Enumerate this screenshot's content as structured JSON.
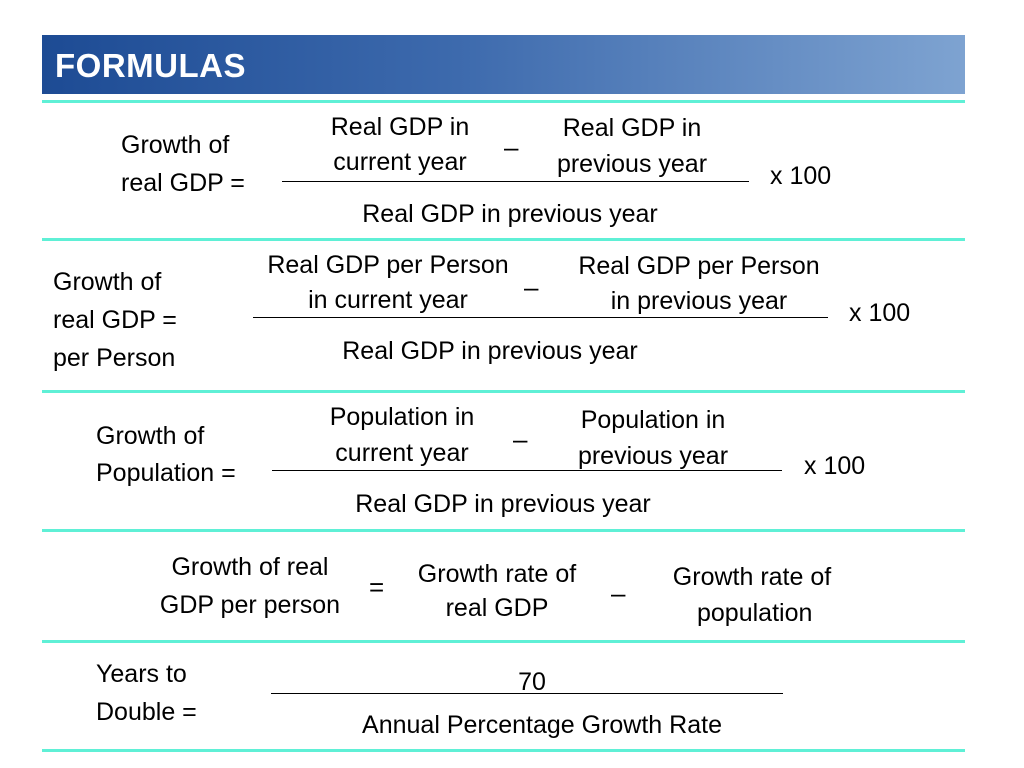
{
  "header": {
    "title": "FORMULAS"
  },
  "formula1": {
    "lhs": [
      "Growth of",
      "real GDP ="
    ],
    "num_left": [
      "Real GDP in",
      "current year"
    ],
    "num_minus": "–",
    "num_right": [
      "Real GDP in",
      "previous year"
    ],
    "denominator": "Real GDP in previous year",
    "multiplier": "x 100"
  },
  "formula2": {
    "lhs": [
      "Growth of",
      "real GDP =",
      "per Person"
    ],
    "num_left": [
      "Real GDP per Person",
      "in current year"
    ],
    "num_minus": "–",
    "num_right": [
      "Real GDP per Person",
      "in previous year"
    ],
    "denominator": "Real GDP in previous year",
    "multiplier": "x 100"
  },
  "formula3": {
    "lhs": [
      "Growth of",
      "Population ="
    ],
    "num_left": [
      "Population in",
      "current year"
    ],
    "num_minus": "–",
    "num_right": [
      "Population in",
      "previous year"
    ],
    "denominator": "Real GDP in previous year",
    "multiplier": "x 100"
  },
  "formula4": {
    "term1": [
      "Growth of real",
      "GDP per person"
    ],
    "equals": "=",
    "term2": [
      "Growth rate of",
      "real GDP"
    ],
    "minus": "–",
    "term3": [
      "Growth rate of",
      "population"
    ]
  },
  "formula5": {
    "lhs": [
      "Years to",
      "Double ="
    ],
    "numerator": "70",
    "denominator": "Annual Percentage Growth Rate"
  }
}
